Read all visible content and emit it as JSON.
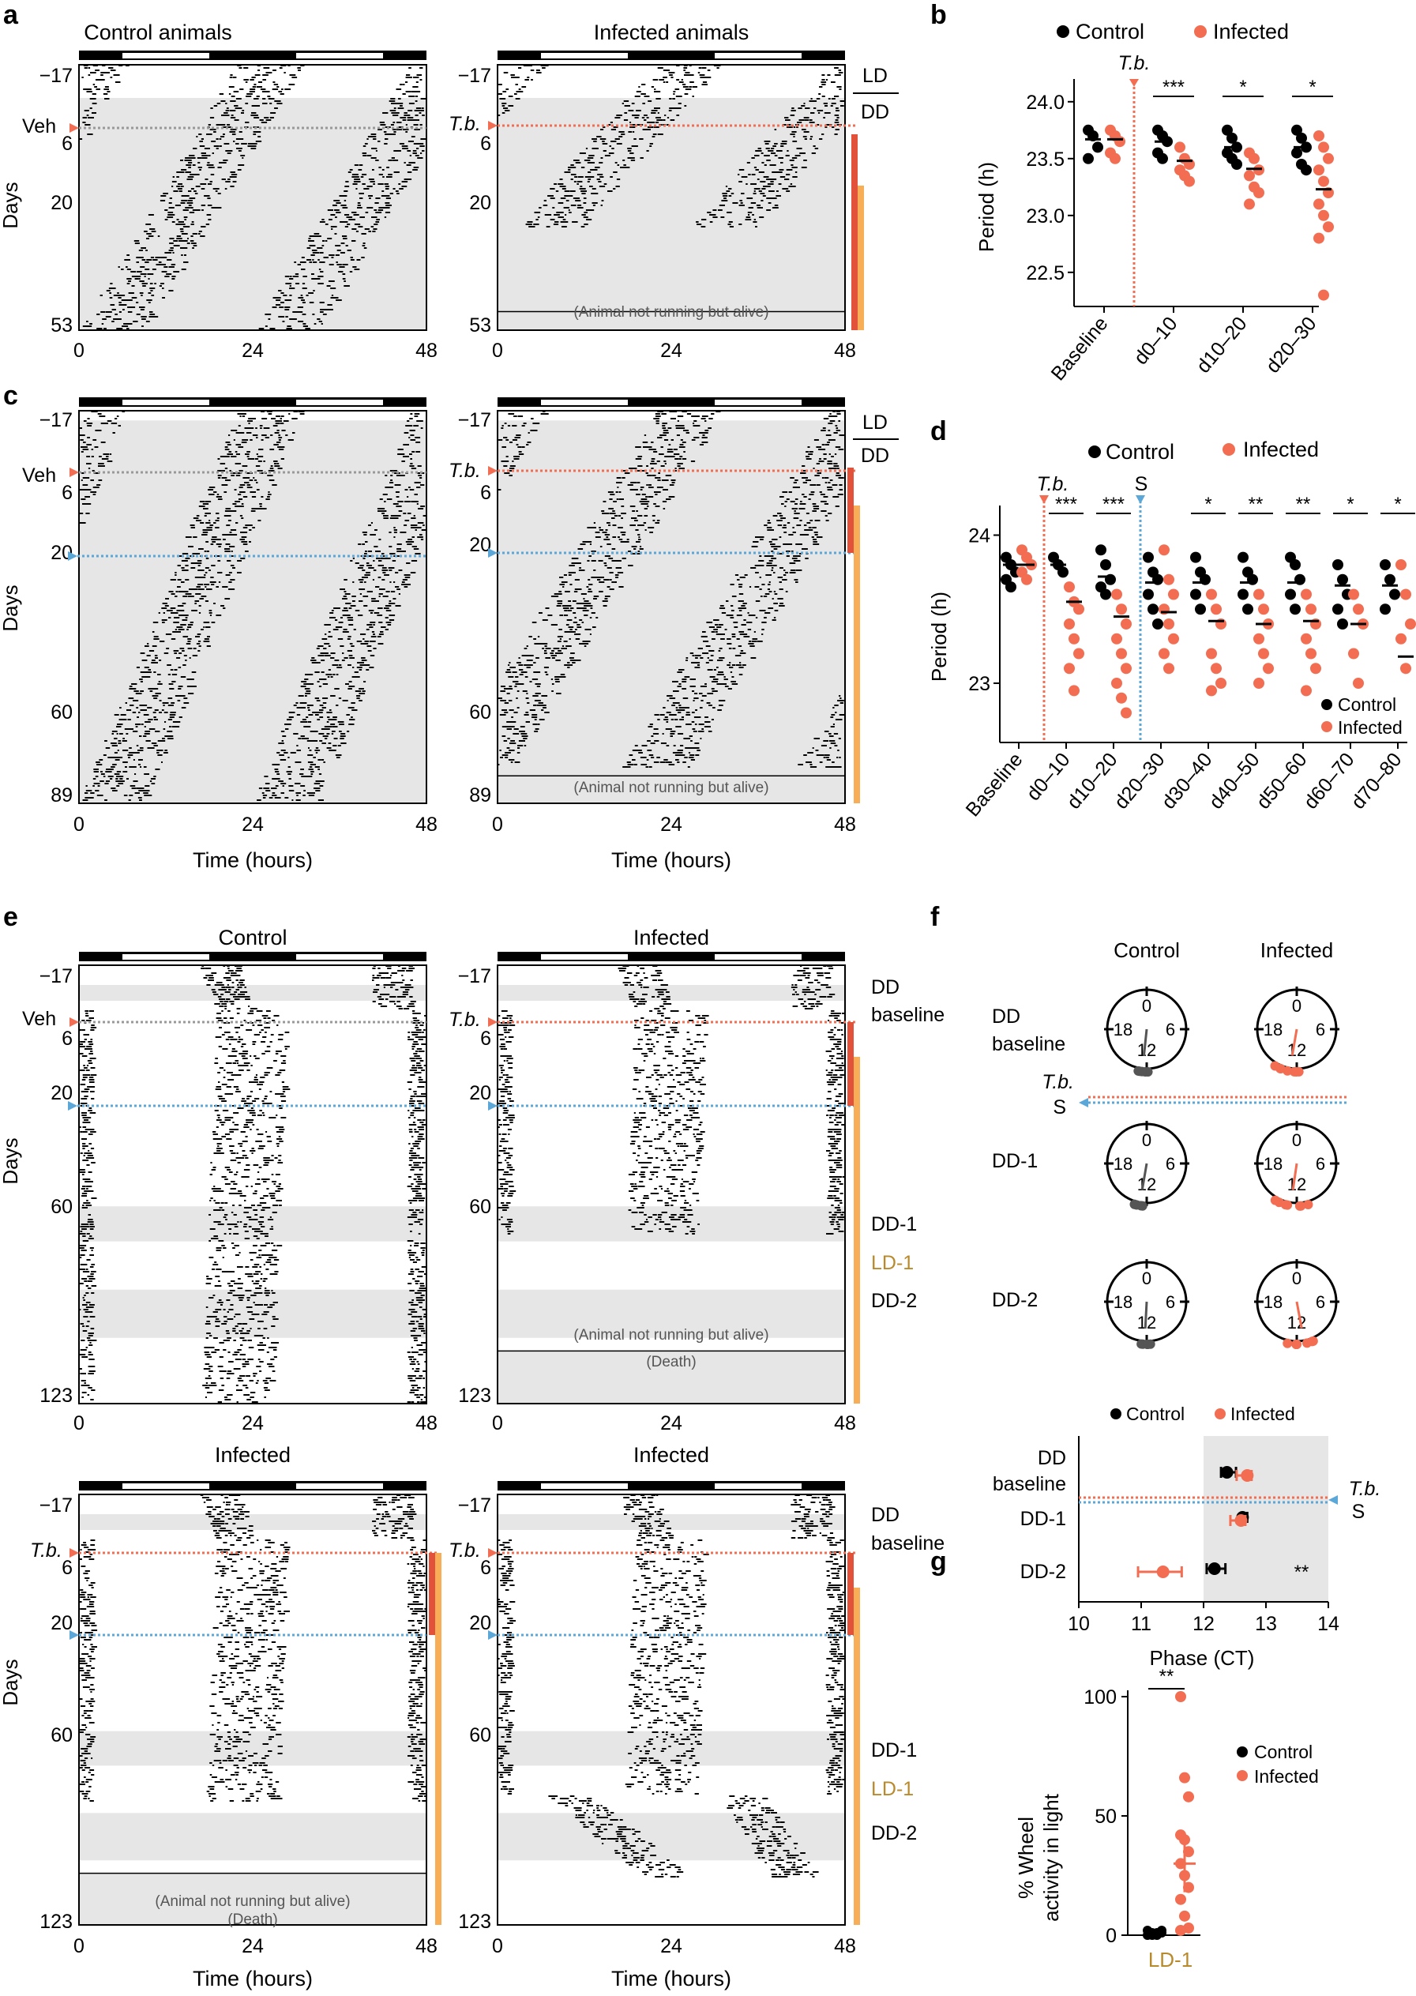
{
  "panels": {
    "a": "a",
    "b": "b",
    "c": "c",
    "d": "d",
    "e": "e",
    "f": "f",
    "g": "g"
  },
  "common": {
    "days_label": "Days",
    "time_label": "Time (hours)",
    "t0": "0",
    "t24": "24",
    "t48": "48",
    "veh": "Veh",
    "tb": "T.b.",
    "s": "S",
    "ld": "LD",
    "dd": "DD",
    "not_running": "(Animal not running but alive)",
    "death": "(Death)"
  },
  "panel_a": {
    "control_title": "Control animals",
    "infected_title": "Infected animals",
    "days": [
      "−17",
      "6",
      "20",
      "53"
    ]
  },
  "panel_c": {
    "days": [
      "−17",
      "6",
      "20",
      "60",
      "89"
    ]
  },
  "panel_e": {
    "control_title": "Control",
    "infected_title": "Infected",
    "days": [
      "−17",
      "6",
      "20",
      "60",
      "123"
    ],
    "labels": {
      "dd_baseline_1": "DD",
      "dd_baseline_2": "baseline",
      "dd1": "DD-1",
      "ld1": "LD-1",
      "dd2": "DD-2"
    }
  },
  "colors": {
    "control": "#000000",
    "infected": "#f26d51",
    "tb_line": "#f26d51",
    "s_line": "#5ba7d8",
    "shade": "#e6e6e6",
    "dark_orange": "#e2513a",
    "light_orange": "#f7ae56",
    "ld_gold": "#b98a2c"
  },
  "legend": {
    "control": "Control",
    "infected": "Infected"
  },
  "chart_data": [
    {
      "id": "b",
      "type": "scatter",
      "title": "",
      "ylabel": "Period (h)",
      "xlabel": "",
      "ylim": [
        22.2,
        24.2
      ],
      "yticks": [
        "24.0",
        "23.5",
        "23.0",
        "22.5"
      ],
      "categories": [
        "Baseline",
        "d0–10",
        "d10–20",
        "d20–30"
      ],
      "significance": [
        "",
        "***",
        "*",
        "*"
      ],
      "series": [
        {
          "name": "Control",
          "values": [
            [
              23.75,
              23.7,
              23.6,
              23.5
            ],
            [
              23.75,
              23.7,
              23.65,
              23.55,
              23.5
            ],
            [
              23.75,
              23.68,
              23.6,
              23.55,
              23.5,
              23.45
            ],
            [
              23.75,
              23.68,
              23.6,
              23.55,
              23.45,
              23.4
            ]
          ],
          "means": [
            23.67,
            23.65,
            23.6,
            23.6
          ]
        },
        {
          "name": "Infected",
          "values": [
            [
              23.75,
              23.7,
              23.65,
              23.55,
              23.5
            ],
            [
              23.6,
              23.5,
              23.45,
              23.4,
              23.35,
              23.3
            ],
            [
              23.55,
              23.5,
              23.4,
              23.35,
              23.25,
              23.2,
              23.1
            ],
            [
              23.7,
              23.6,
              23.5,
              23.4,
              23.3,
              23.2,
              23.1,
              23.0,
              22.9,
              22.8,
              22.3
            ]
          ],
          "means": [
            23.67,
            23.48,
            23.41,
            23.23
          ]
        }
      ]
    },
    {
      "id": "d",
      "type": "scatter",
      "title": "",
      "ylabel": "Period (h)",
      "xlabel": "",
      "ylim": [
        22.6,
        24.2
      ],
      "yticks": [
        "24",
        "23"
      ],
      "categories": [
        "Baseline",
        "d0–10",
        "d10–20",
        "d20–30",
        "d30–40",
        "d40–50",
        "d50–60",
        "d60–70",
        "d70–80"
      ],
      "significance": [
        "",
        "***",
        "***",
        "",
        "*",
        "**",
        "**",
        "*",
        "*"
      ],
      "series": [
        {
          "name": "Control",
          "values": [
            [
              23.85,
              23.8,
              23.75,
              23.7,
              23.65
            ],
            [
              23.85,
              23.8,
              23.75
            ],
            [
              23.9,
              23.8,
              23.7,
              23.65,
              23.6
            ],
            [
              23.85,
              23.75,
              23.7,
              23.6,
              23.5,
              23.4
            ],
            [
              23.85,
              23.75,
              23.7,
              23.6,
              23.5
            ],
            [
              23.85,
              23.75,
              23.7,
              23.6,
              23.5
            ],
            [
              23.85,
              23.8,
              23.7,
              23.6,
              23.5
            ],
            [
              23.8,
              23.7,
              23.6,
              23.5,
              23.4
            ],
            [
              23.8,
              23.7,
              23.6,
              23.5
            ]
          ],
          "means": [
            23.8,
            23.8,
            23.72,
            23.68,
            23.68,
            23.68,
            23.68,
            23.66,
            23.66
          ]
        },
        {
          "name": "Infected",
          "values": [
            [
              23.9,
              23.85,
              23.8,
              23.75,
              23.7
            ],
            [
              23.65,
              23.55,
              23.5,
              23.4,
              23.3,
              23.2,
              23.1,
              22.95
            ],
            [
              23.6,
              23.5,
              23.4,
              23.3,
              23.2,
              23.1,
              23.0,
              22.9,
              22.8
            ],
            [
              23.9,
              23.7,
              23.6,
              23.5,
              23.4,
              23.3,
              23.2,
              23.1
            ],
            [
              23.6,
              23.5,
              23.4,
              23.2,
              23.1,
              23.0,
              22.95
            ],
            [
              23.6,
              23.5,
              23.4,
              23.3,
              23.2,
              23.1,
              23.0
            ],
            [
              23.6,
              23.5,
              23.4,
              23.3,
              23.2,
              23.1,
              22.95
            ],
            [
              23.6,
              23.5,
              23.4,
              23.2,
              23.0
            ],
            [
              23.8,
              23.6,
              23.4,
              23.3,
              23.1
            ]
          ],
          "means": [
            23.8,
            23.55,
            23.45,
            23.48,
            23.42,
            23.4,
            23.42,
            23.4,
            23.18
          ]
        }
      ]
    },
    {
      "id": "f-bottom",
      "type": "scatter",
      "title": "",
      "xlabel": "Phase (CT)",
      "ylabel": "",
      "xlim": [
        10,
        14
      ],
      "xticks": [
        "10",
        "11",
        "12",
        "13",
        "14"
      ],
      "categories": [
        "DD baseline",
        "DD-1",
        "DD-2"
      ],
      "significance": [
        "",
        "",
        "**"
      ],
      "series": [
        {
          "name": "Control",
          "values": [
            12.4,
            12.65,
            12.2
          ],
          "errors": [
            0.12,
            0.05,
            0.15
          ]
        },
        {
          "name": "Infected",
          "values": [
            12.65,
            12.55,
            11.3
          ],
          "errors": [
            0.12,
            0.12,
            0.35
          ]
        }
      ]
    },
    {
      "id": "g",
      "type": "scatter",
      "title": "",
      "ylabel": "% Wheel activity in light",
      "xlabel": "",
      "ylim": [
        0,
        100
      ],
      "yticks": [
        "100",
        "50",
        "0"
      ],
      "categories": [
        "LD-1"
      ],
      "significance": [
        "**"
      ],
      "series": [
        {
          "name": "Control",
          "values": [
            0,
            0,
            1,
            1,
            2,
            1,
            0,
            2
          ],
          "mean": 1
        },
        {
          "name": "Infected",
          "values": [
            100,
            66,
            58,
            42,
            40,
            35,
            30,
            25,
            20,
            15,
            8,
            3,
            2
          ],
          "mean": 30
        }
      ]
    }
  ],
  "panel_f": {
    "col_control": "Control",
    "col_infected": "Infected",
    "rows": [
      "DD baseline",
      "DD-1",
      "DD-2"
    ],
    "row_labels": {
      "dd": "DD",
      "baseline": "baseline",
      "dd1": "DD-1",
      "dd2": "DD-2"
    },
    "clock": {
      "n0": "0",
      "n6": "6",
      "n12": "12",
      "n18": "18"
    },
    "ct_control": [
      12.4,
      12.65,
      12.2
    ],
    "ct_infected": [
      12.65,
      12.55,
      11.3
    ],
    "legend_control": "Control",
    "legend_infected": "Infected",
    "cat_dd": "DD",
    "cat_baseline": "baseline",
    "cat_dd1": "DD-1",
    "cat_dd2": "DD-2"
  },
  "panel_d_legend2": {
    "control": "Control",
    "infected": "Infected"
  },
  "panel_g": {
    "ylabel1": "% Wheel",
    "ylabel2": "activity in light",
    "cat": "LD-1",
    "sig": "**"
  }
}
